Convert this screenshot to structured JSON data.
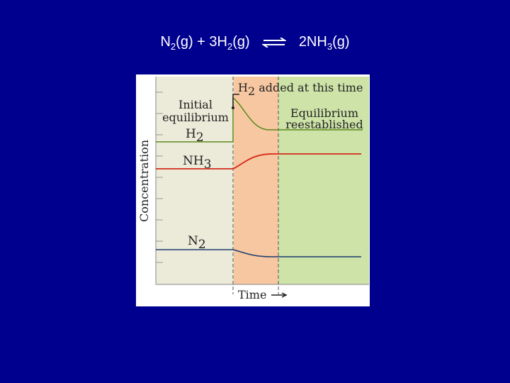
{
  "equation": {
    "r1": {
      "symbol": "N",
      "subscript": "2",
      "suffix": "(g)"
    },
    "plus": "+",
    "r2": {
      "symbol": "3H",
      "subscript": "2",
      "suffix": "(g)"
    },
    "p1": {
      "symbol": "2NH",
      "subscript": "3",
      "suffix": "(g)"
    }
  },
  "labels": {
    "added": {
      "species": {
        "symbol": "H",
        "subscript": "2"
      },
      "text": " added at this time"
    },
    "initial": [
      "Initial",
      "equilibrium"
    ],
    "h2": {
      "symbol": "H",
      "subscript": "2"
    },
    "nh3": {
      "symbol": "NH",
      "subscript": "3"
    },
    "n2": {
      "symbol": "N",
      "subscript": "2"
    },
    "final": [
      "Equilibrium",
      "reestablished"
    ],
    "y_axis": "Concentration",
    "x_axis": "Time"
  }
}
